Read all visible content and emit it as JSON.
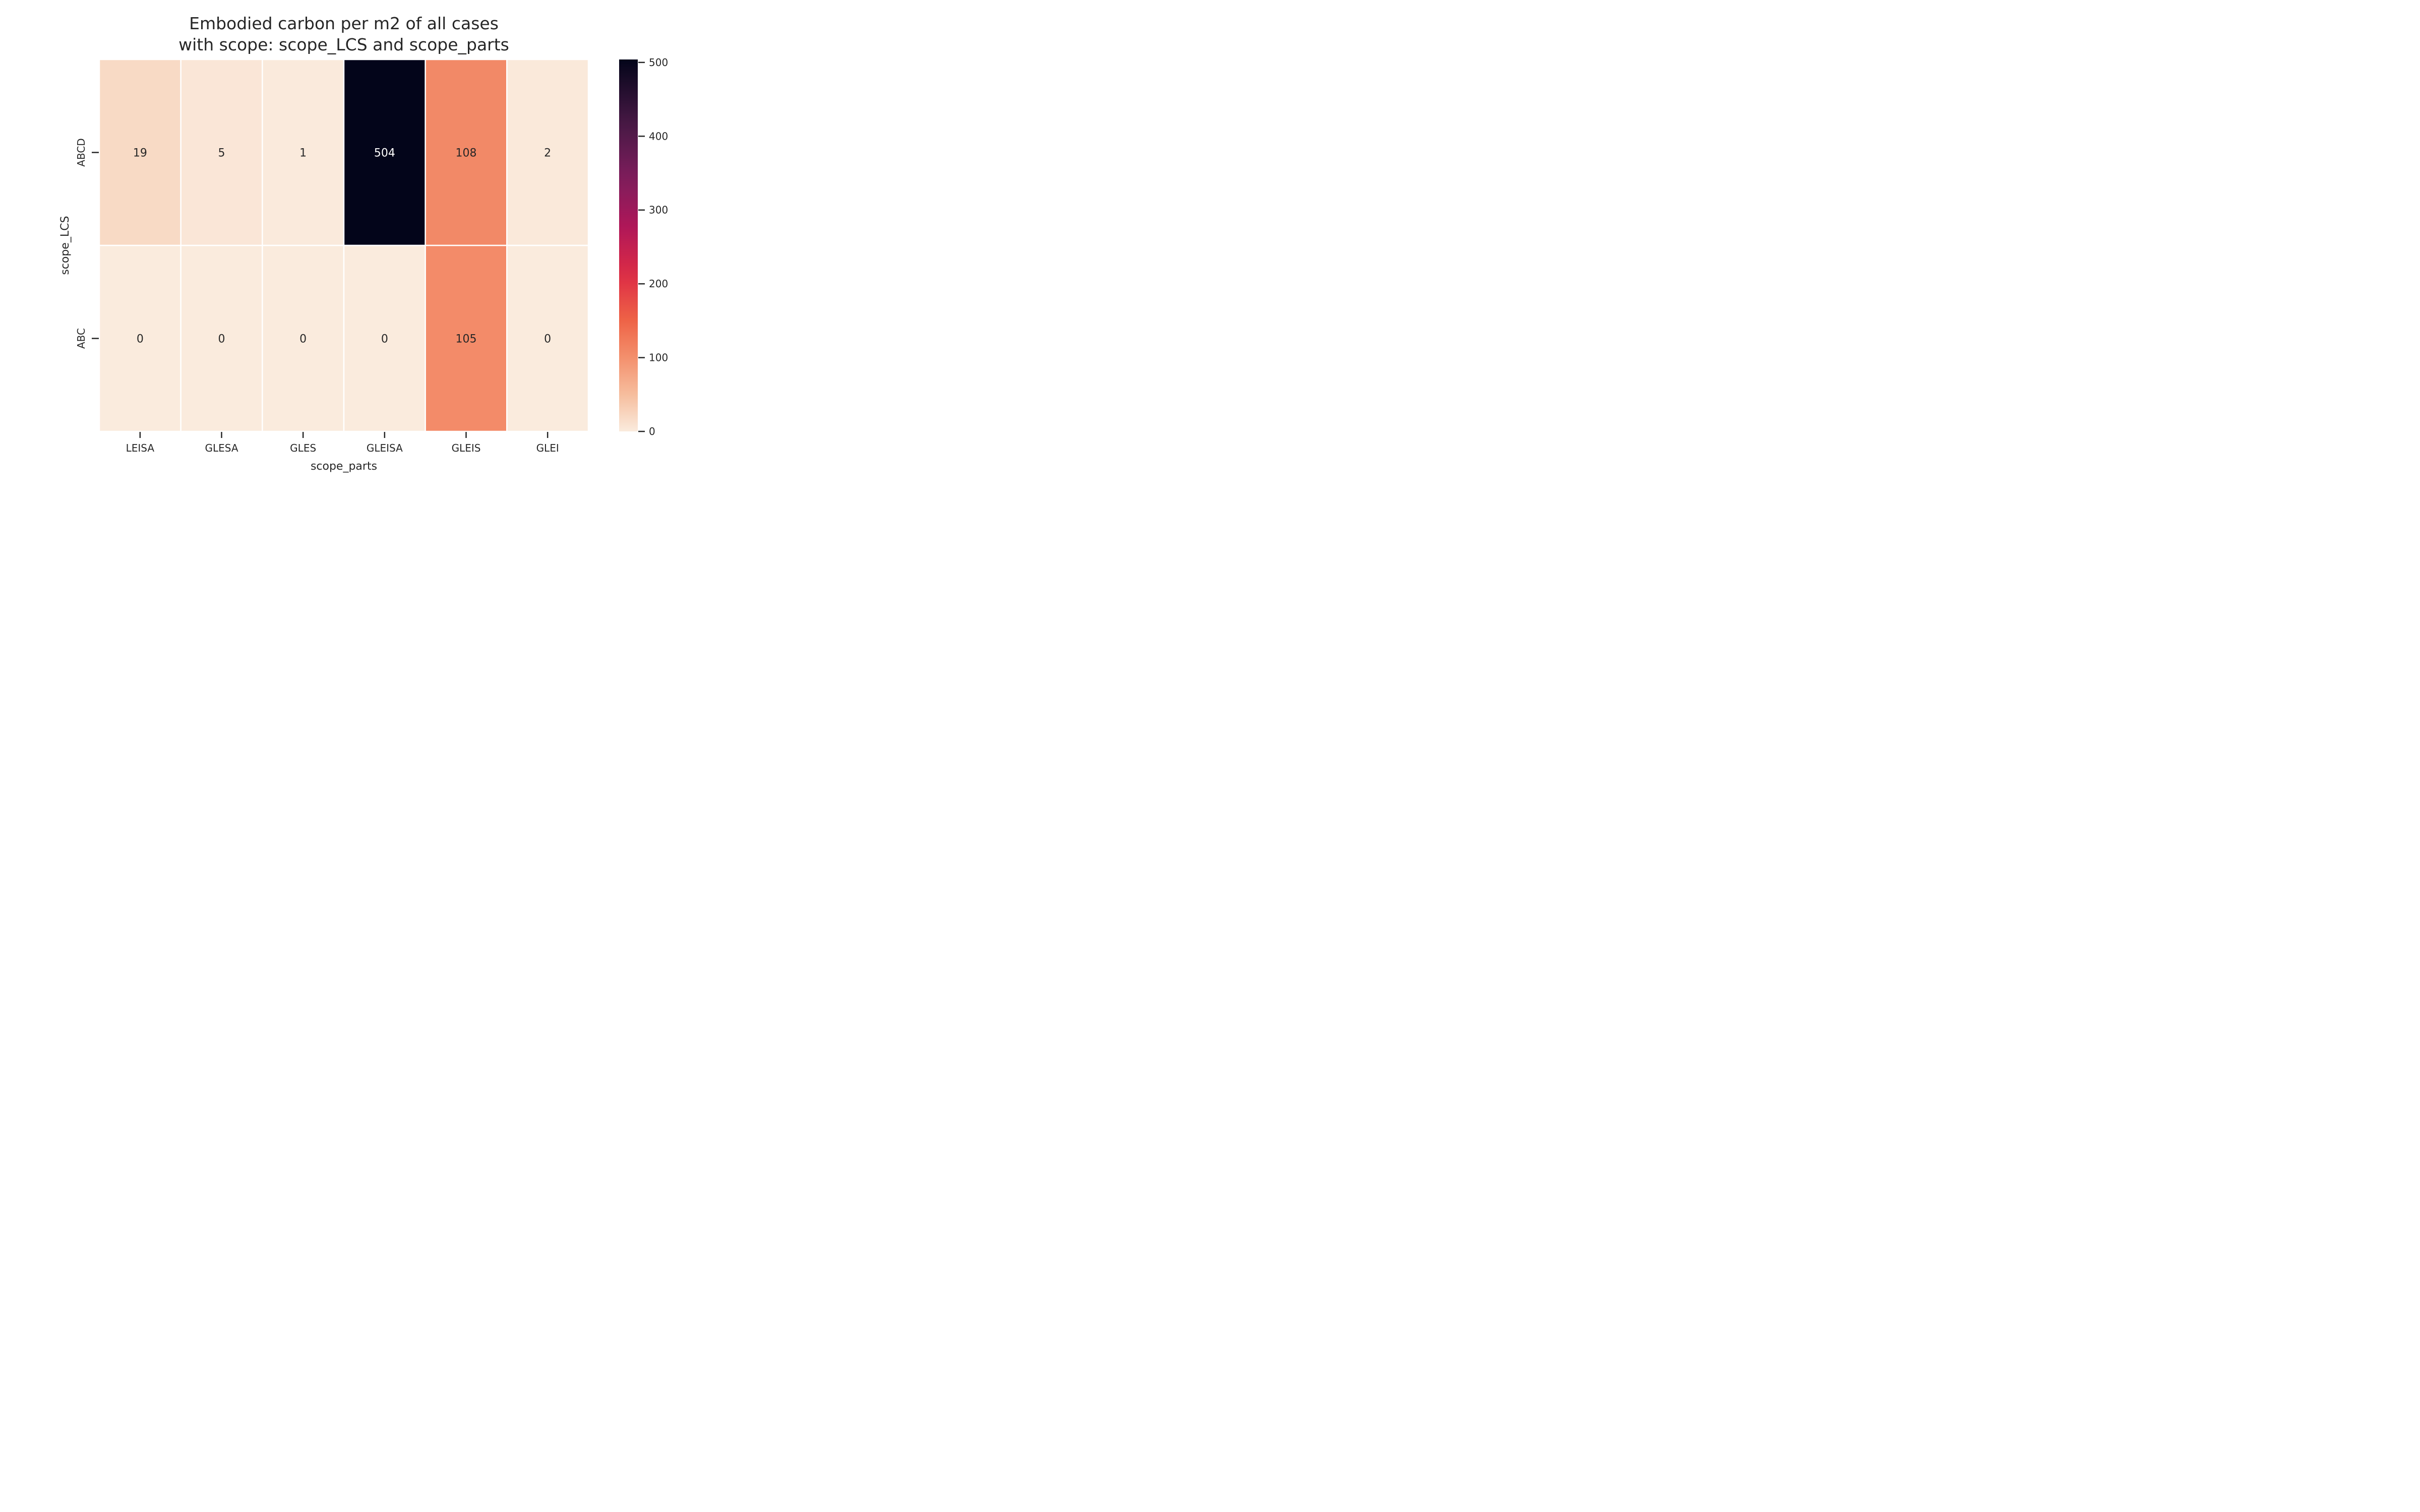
{
  "chart_data": {
    "type": "heatmap",
    "title": [
      "Embodied carbon per m2 of all cases",
      "with scope: scope_LCS and scope_parts"
    ],
    "xlabel": "scope_parts",
    "ylabel": "scope_LCS",
    "x_categories": [
      "LEISA",
      "GLESA",
      "GLES",
      "GLEISA",
      "GLEIS",
      "GLEI"
    ],
    "y_categories": [
      "ABCD",
      "ABC"
    ],
    "values": [
      [
        19,
        5,
        1,
        504,
        108,
        2
      ],
      [
        0,
        0,
        0,
        0,
        105,
        0
      ]
    ],
    "colorbar": {
      "range": [
        0,
        504
      ],
      "ticks": [
        0,
        100,
        200,
        300,
        400,
        500
      ],
      "colormap": "rocket_r"
    },
    "cell_separator_color": "#ffffff"
  }
}
